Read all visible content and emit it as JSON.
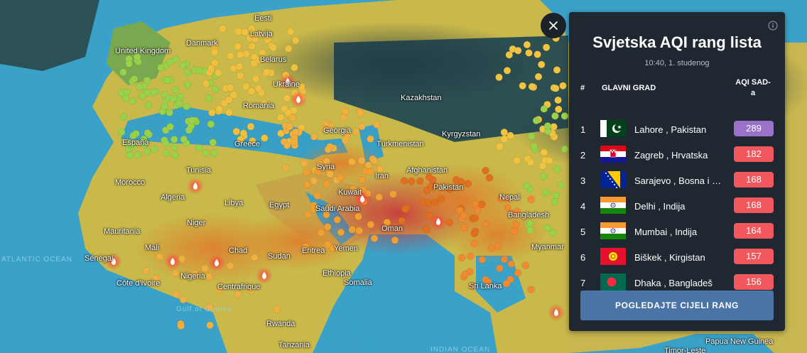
{
  "map": {
    "places": [
      {
        "label": "Eesti",
        "class": ""
      },
      {
        "label": "Latvija",
        "class": ""
      },
      {
        "label": "Danmark",
        "class": ""
      },
      {
        "label": "United Kingdom",
        "class": ""
      },
      {
        "label": "Belarus",
        "class": ""
      },
      {
        "label": "Ukraine",
        "class": ""
      },
      {
        "label": "Romania",
        "class": ""
      },
      {
        "label": "España",
        "class": ""
      },
      {
        "label": "Greece",
        "class": ""
      },
      {
        "label": "Kazakhstan",
        "class": ""
      },
      {
        "label": "Georgia",
        "class": ""
      },
      {
        "label": "Kyrgyzstan",
        "class": ""
      },
      {
        "label": "Türkmenistan",
        "class": ""
      },
      {
        "label": "Tunisia",
        "class": ""
      },
      {
        "label": "Syria",
        "class": ""
      },
      {
        "label": "Iran",
        "class": ""
      },
      {
        "label": "Afghanistan",
        "class": ""
      },
      {
        "label": "Morocco",
        "class": ""
      },
      {
        "label": "Algeria",
        "class": ""
      },
      {
        "label": "Libya",
        "class": ""
      },
      {
        "label": "Egypt",
        "class": ""
      },
      {
        "label": "Kuwait",
        "class": ""
      },
      {
        "label": "Saudi Arabia",
        "class": ""
      },
      {
        "label": "Pakistan",
        "class": ""
      },
      {
        "label": "Nepal",
        "class": ""
      },
      {
        "label": "Bangladesh",
        "class": ""
      },
      {
        "label": "Oman",
        "class": ""
      },
      {
        "label": "Mauritania",
        "class": ""
      },
      {
        "label": "Mali",
        "class": ""
      },
      {
        "label": "Niger",
        "class": ""
      },
      {
        "label": "Chad",
        "class": ""
      },
      {
        "label": "Sudan",
        "class": ""
      },
      {
        "label": "Eritrea",
        "class": ""
      },
      {
        "label": "Yemen",
        "class": ""
      },
      {
        "label": "Sénégal",
        "class": ""
      },
      {
        "label": "Nigeria",
        "class": ""
      },
      {
        "label": "Ethiopia",
        "class": ""
      },
      {
        "label": "Somalia",
        "class": ""
      },
      {
        "label": "Côte d'Ivoire",
        "class": ""
      },
      {
        "label": "Centrafrique",
        "class": ""
      },
      {
        "label": "Rwanda",
        "class": ""
      },
      {
        "label": "Tanzania",
        "class": ""
      },
      {
        "label": "Myanmar",
        "class": ""
      },
      {
        "label": "Sri Lanka",
        "class": ""
      },
      {
        "label": "Papua New Guinea",
        "class": ""
      },
      {
        "label": "Timor-Leste",
        "class": ""
      },
      {
        "label": "ATLANTIC OCEAN",
        "class": "dim"
      },
      {
        "label": "Gulf of Guinea",
        "class": "dim"
      },
      {
        "label": "INDIAN OCEAN",
        "class": "dim"
      }
    ]
  },
  "close_button": {
    "icon": "close-icon"
  },
  "panel": {
    "title": "Svjetska AQI rang lista",
    "time": "10:40, 1. studenog",
    "info_icon": "info-icon",
    "headers": {
      "rank": "#",
      "city": "GLAVNI GRAD",
      "aqi_line1": "AQI SAD-",
      "aqi_line2": "a"
    },
    "rows": [
      {
        "rank": "1",
        "city": "Lahore , Pakistan",
        "aqi": "289",
        "color": "#9a72c9",
        "flag": "pakistan"
      },
      {
        "rank": "2",
        "city": "Zagreb , Hrvatska",
        "aqi": "182",
        "color": "#f0585d",
        "flag": "croatia"
      },
      {
        "rank": "3",
        "city": "Sarajevo , Bosna i Hercegovina",
        "aqi": "168",
        "color": "#f0585d",
        "flag": "bosnia"
      },
      {
        "rank": "4",
        "city": "Delhi , Indija",
        "aqi": "168",
        "color": "#f0585d",
        "flag": "india"
      },
      {
        "rank": "5",
        "city": "Mumbai , Indija",
        "aqi": "164",
        "color": "#f0585d",
        "flag": "india"
      },
      {
        "rank": "6",
        "city": "Biškek , Kirgistan",
        "aqi": "157",
        "color": "#f0585d",
        "flag": "kyrgyzstan"
      },
      {
        "rank": "7",
        "city": "Dhaka , Bangladeš",
        "aqi": "156",
        "color": "#f0585d",
        "flag": "bangladesh"
      }
    ],
    "view_all_label": "POGLEDAJTE CIJELI RANG"
  }
}
